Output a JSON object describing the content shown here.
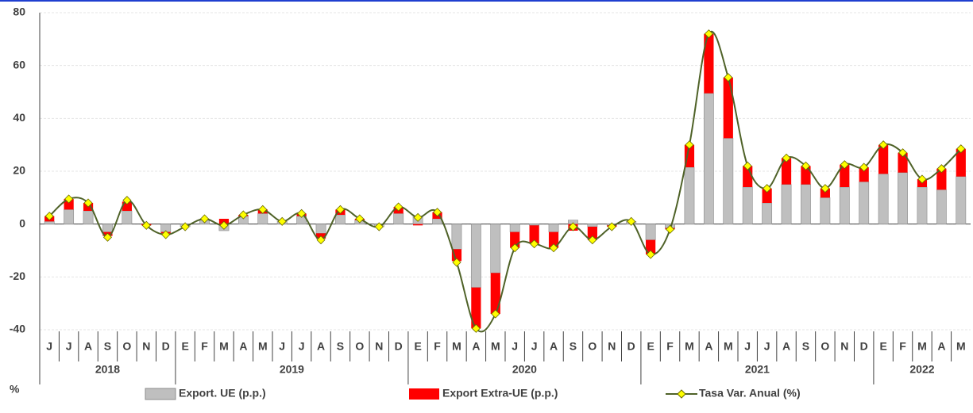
{
  "chart_data": {
    "type": "bar",
    "y_label": "%",
    "categories": [
      "J",
      "J",
      "A",
      "S",
      "O",
      "N",
      "D",
      "E",
      "F",
      "M",
      "A",
      "M",
      "J",
      "J",
      "A",
      "S",
      "O",
      "N",
      "D",
      "E",
      "F",
      "M",
      "A",
      "M",
      "J",
      "J",
      "A",
      "S",
      "O",
      "N",
      "D",
      "E",
      "F",
      "M",
      "A",
      "M",
      "J",
      "J",
      "A",
      "S",
      "O",
      "N",
      "D",
      "E",
      "F",
      "M",
      "A",
      "M"
    ],
    "years": [
      "2018",
      "2019",
      "2020",
      "2021",
      "2022"
    ],
    "series": [
      {
        "name": "Export. UE (p.p.)",
        "color": "#bfbfbf",
        "kind": "bar",
        "values": [
          1,
          5.5,
          5,
          -3,
          5,
          0,
          -3,
          -1,
          1.5,
          -2.5,
          3,
          4,
          1,
          3,
          -3.5,
          3.5,
          1.5,
          -1,
          4,
          3,
          2,
          -9.5,
          -24,
          -18.5,
          -3,
          -0.5,
          -3,
          1.5,
          -1,
          -0.5,
          1,
          -6,
          -1.5,
          21.5,
          49.5,
          32.5,
          14,
          8,
          15,
          15,
          10,
          14,
          16,
          19,
          19.5,
          14,
          13,
          18
        ]
      },
      {
        "name": "Export Extra-UE (p.p.)",
        "color": "#ff0000",
        "kind": "bar",
        "values": [
          2,
          4,
          3,
          -1.5,
          3.5,
          -0.5,
          -0.5,
          0,
          0.5,
          2,
          0.5,
          1.5,
          0,
          1,
          -2,
          2,
          0.5,
          0,
          2.5,
          -0.5,
          2.5,
          -4.5,
          -15.5,
          -15.5,
          -6,
          -7,
          -6,
          -2.5,
          -5,
          -0.5,
          0,
          -5.5,
          -0.5,
          8.5,
          22.5,
          23,
          8,
          5.5,
          10,
          7,
          3.5,
          8.5,
          5.5,
          11,
          7.5,
          3,
          8,
          10.5
        ]
      },
      {
        "name": "Tasa Var. Anual (%)",
        "color": "#4f6228",
        "kind": "line",
        "values": [
          3,
          9.5,
          8,
          -5,
          9,
          -0.5,
          -4,
          -1,
          2,
          -0.5,
          3.5,
          5.5,
          1,
          4,
          -6,
          5.5,
          2,
          -1,
          6.5,
          2.5,
          4.5,
          -14.5,
          -39.5,
          -34,
          -9,
          -7.5,
          -9,
          -1,
          -6,
          -1,
          1,
          -11.5,
          -2,
          30,
          72,
          55.5,
          22,
          13.5,
          25,
          22,
          13.5,
          22.5,
          21.5,
          30,
          27,
          17,
          21,
          28.5
        ]
      }
    ],
    "ylim": [
      -40,
      80
    ],
    "yticks": [
      -40,
      -20,
      0,
      20,
      40,
      60,
      80
    ],
    "grid": true
  }
}
